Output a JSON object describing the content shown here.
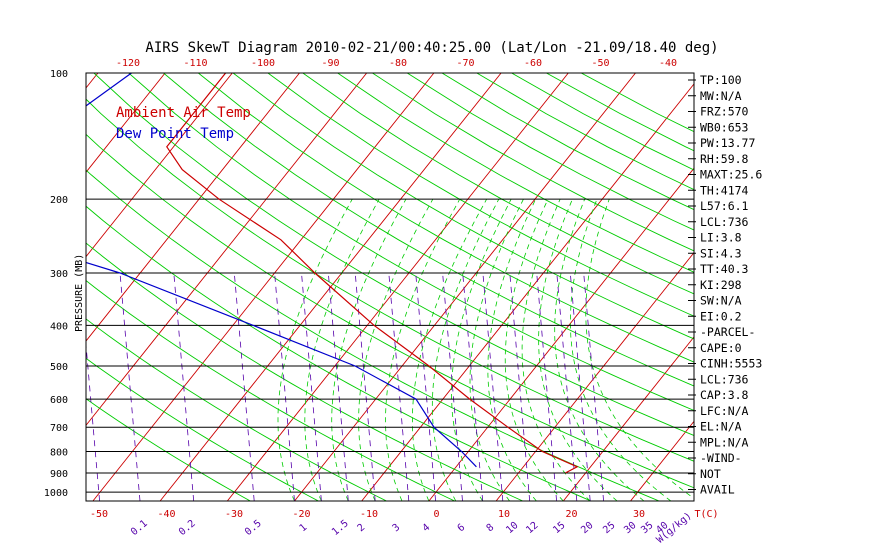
{
  "title": "AIRS SkewT Diagram 2010-02-21/00:40:25.00 (Lat/Lon -21.09/18.40 deg)",
  "ylabel": "PRESSURE (MB)",
  "legend": {
    "temp": "Ambient Air Temp",
    "dew": "Dew Point Temp"
  },
  "colors": {
    "temp": "#cc0000",
    "dew": "#0000cc",
    "isotherm": "#cc0000",
    "dry_adiabat": "#00cc00",
    "moist_adiabat": "#00cc00",
    "mixing_ratio": "#5500aa",
    "isobar": "#000000"
  },
  "chart_data": {
    "type": "line",
    "y_scale": "log",
    "y_reversed": true,
    "pressure_range": [
      1050,
      100
    ],
    "pressure_ticks": [
      100,
      200,
      300,
      400,
      500,
      600,
      700,
      800,
      900,
      1000
    ],
    "isobars": [
      1000,
      900,
      800,
      700,
      600,
      500,
      400,
      300,
      200
    ],
    "bottom_temp_ticks": [
      "-50",
      "-40",
      "-30",
      "-20",
      "-10",
      "0",
      "10",
      "20",
      "30",
      "T(C)"
    ],
    "top_temp_ticks": [
      "-120",
      "-110",
      "-100",
      "-90",
      "-80",
      "-70",
      "-60",
      "-50",
      "-40"
    ],
    "mixing_ratio_labels": [
      "0.1",
      "0.2",
      "0.5",
      "1",
      "1.5",
      "2",
      "3",
      "4",
      "6",
      "8",
      "10",
      "12",
      "15",
      "20",
      "25",
      "30",
      "35",
      "40",
      "W(g/kg)"
    ],
    "series": [
      {
        "name": "Ambient Air Temp",
        "points": [
          [
            100,
            -81
          ],
          [
            150,
            -81
          ],
          [
            170,
            -76
          ],
          [
            200,
            -67
          ],
          [
            250,
            -53
          ],
          [
            300,
            -44
          ],
          [
            400,
            -29
          ],
          [
            500,
            -16
          ],
          [
            600,
            -6
          ],
          [
            700,
            3
          ],
          [
            800,
            11
          ],
          [
            870,
            18
          ],
          [
            900,
            17
          ]
        ]
      },
      {
        "name": "Dew Point Temp",
        "points": [
          [
            100,
            -95
          ],
          [
            200,
            -106
          ],
          [
            250,
            -93
          ],
          [
            300,
            -73
          ],
          [
            400,
            -47
          ],
          [
            500,
            -27
          ],
          [
            600,
            -14
          ],
          [
            700,
            -8
          ],
          [
            800,
            -1
          ],
          [
            870,
            3
          ]
        ]
      }
    ],
    "stats": [
      "TP:100",
      "MW:N/A",
      "FRZ:570",
      "WB0:653",
      "PW:13.77",
      "RH:59.8",
      "MAXT:25.6",
      "TH:4174",
      "L57:6.1",
      "LCL:736",
      "LI:3.8",
      "SI:4.3",
      "TT:40.3",
      "KI:298",
      "SW:N/A",
      "EI:0.2",
      "-PARCEL-",
      "CAPE:0",
      "CINH:5553",
      "LCL:736",
      "CAP:3.8",
      "LFC:N/A",
      "EL:N/A",
      "MPL:N/A",
      "-WIND-",
      "NOT",
      "AVAIL"
    ]
  }
}
